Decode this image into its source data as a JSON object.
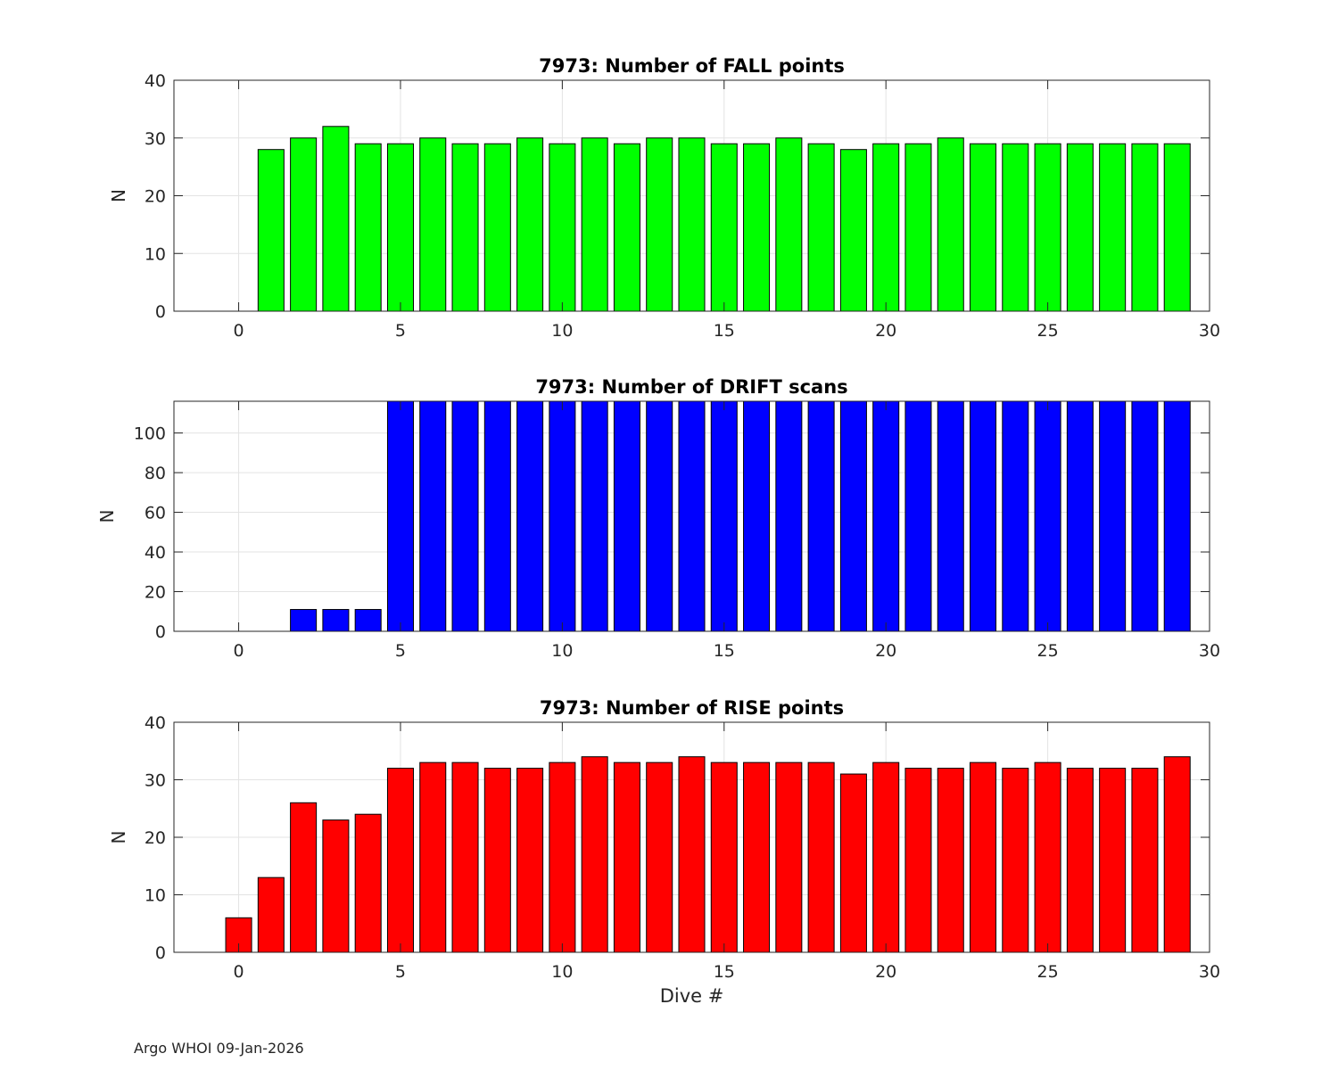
{
  "footer": "Argo WHOI 09-Jan-2026",
  "chart_data": [
    {
      "type": "bar",
      "title": "7973: Number of FALL points",
      "xlabel": "",
      "ylabel": "N",
      "xlim": [
        -2,
        30
      ],
      "ylim": [
        0,
        40
      ],
      "xticks": [
        0,
        5,
        10,
        15,
        20,
        25,
        30
      ],
      "yticks": [
        0,
        10,
        20,
        30,
        40
      ],
      "grid": true,
      "color": "#00ff00",
      "x": [
        1,
        2,
        3,
        4,
        5,
        6,
        7,
        8,
        9,
        10,
        11,
        12,
        13,
        14,
        15,
        16,
        17,
        18,
        19,
        20,
        21,
        22,
        23,
        24,
        25,
        26,
        27,
        28,
        29
      ],
      "values": [
        28,
        30,
        32,
        29,
        29,
        30,
        29,
        29,
        30,
        29,
        30,
        29,
        30,
        30,
        29,
        29,
        30,
        29,
        28,
        29,
        29,
        30,
        29,
        29,
        29,
        29,
        29,
        29,
        29
      ]
    },
    {
      "type": "bar",
      "title": "7973: Number of DRIFT scans",
      "xlabel": "",
      "ylabel": "N",
      "xlim": [
        -2,
        30
      ],
      "ylim": [
        0,
        116
      ],
      "xticks": [
        0,
        5,
        10,
        15,
        20,
        25,
        30
      ],
      "yticks": [
        0,
        20,
        40,
        60,
        80,
        100
      ],
      "grid": true,
      "color": "#0000ff",
      "x": [
        -1,
        0,
        1,
        2,
        3,
        4,
        5,
        6,
        7,
        8,
        9,
        10,
        11,
        12,
        13,
        14,
        15,
        16,
        17,
        18,
        19,
        20,
        21,
        22,
        23,
        24,
        25,
        26,
        27,
        28,
        29
      ],
      "values": [
        0,
        0,
        0,
        11,
        11,
        11,
        116,
        116,
        116,
        116,
        116,
        116,
        116,
        116,
        116,
        116,
        116,
        116,
        116,
        116,
        116,
        116,
        116,
        116,
        116,
        116,
        116,
        116,
        116,
        116,
        116
      ]
    },
    {
      "type": "bar",
      "title": "7973: Number of RISE points",
      "xlabel": "Dive #",
      "ylabel": "N",
      "xlim": [
        -2,
        30
      ],
      "ylim": [
        0,
        40
      ],
      "xticks": [
        0,
        5,
        10,
        15,
        20,
        25,
        30
      ],
      "yticks": [
        0,
        10,
        20,
        30,
        40
      ],
      "grid": true,
      "color": "#ff0000",
      "x": [
        0,
        1,
        2,
        3,
        4,
        5,
        6,
        7,
        8,
        9,
        10,
        11,
        12,
        13,
        14,
        15,
        16,
        17,
        18,
        19,
        20,
        21,
        22,
        23,
        24,
        25,
        26,
        27,
        28,
        29
      ],
      "values": [
        6,
        13,
        26,
        23,
        24,
        32,
        33,
        33,
        32,
        32,
        33,
        34,
        33,
        33,
        34,
        33,
        33,
        33,
        33,
        31,
        33,
        32,
        32,
        33,
        32,
        33,
        32,
        32,
        32,
        34
      ]
    }
  ]
}
